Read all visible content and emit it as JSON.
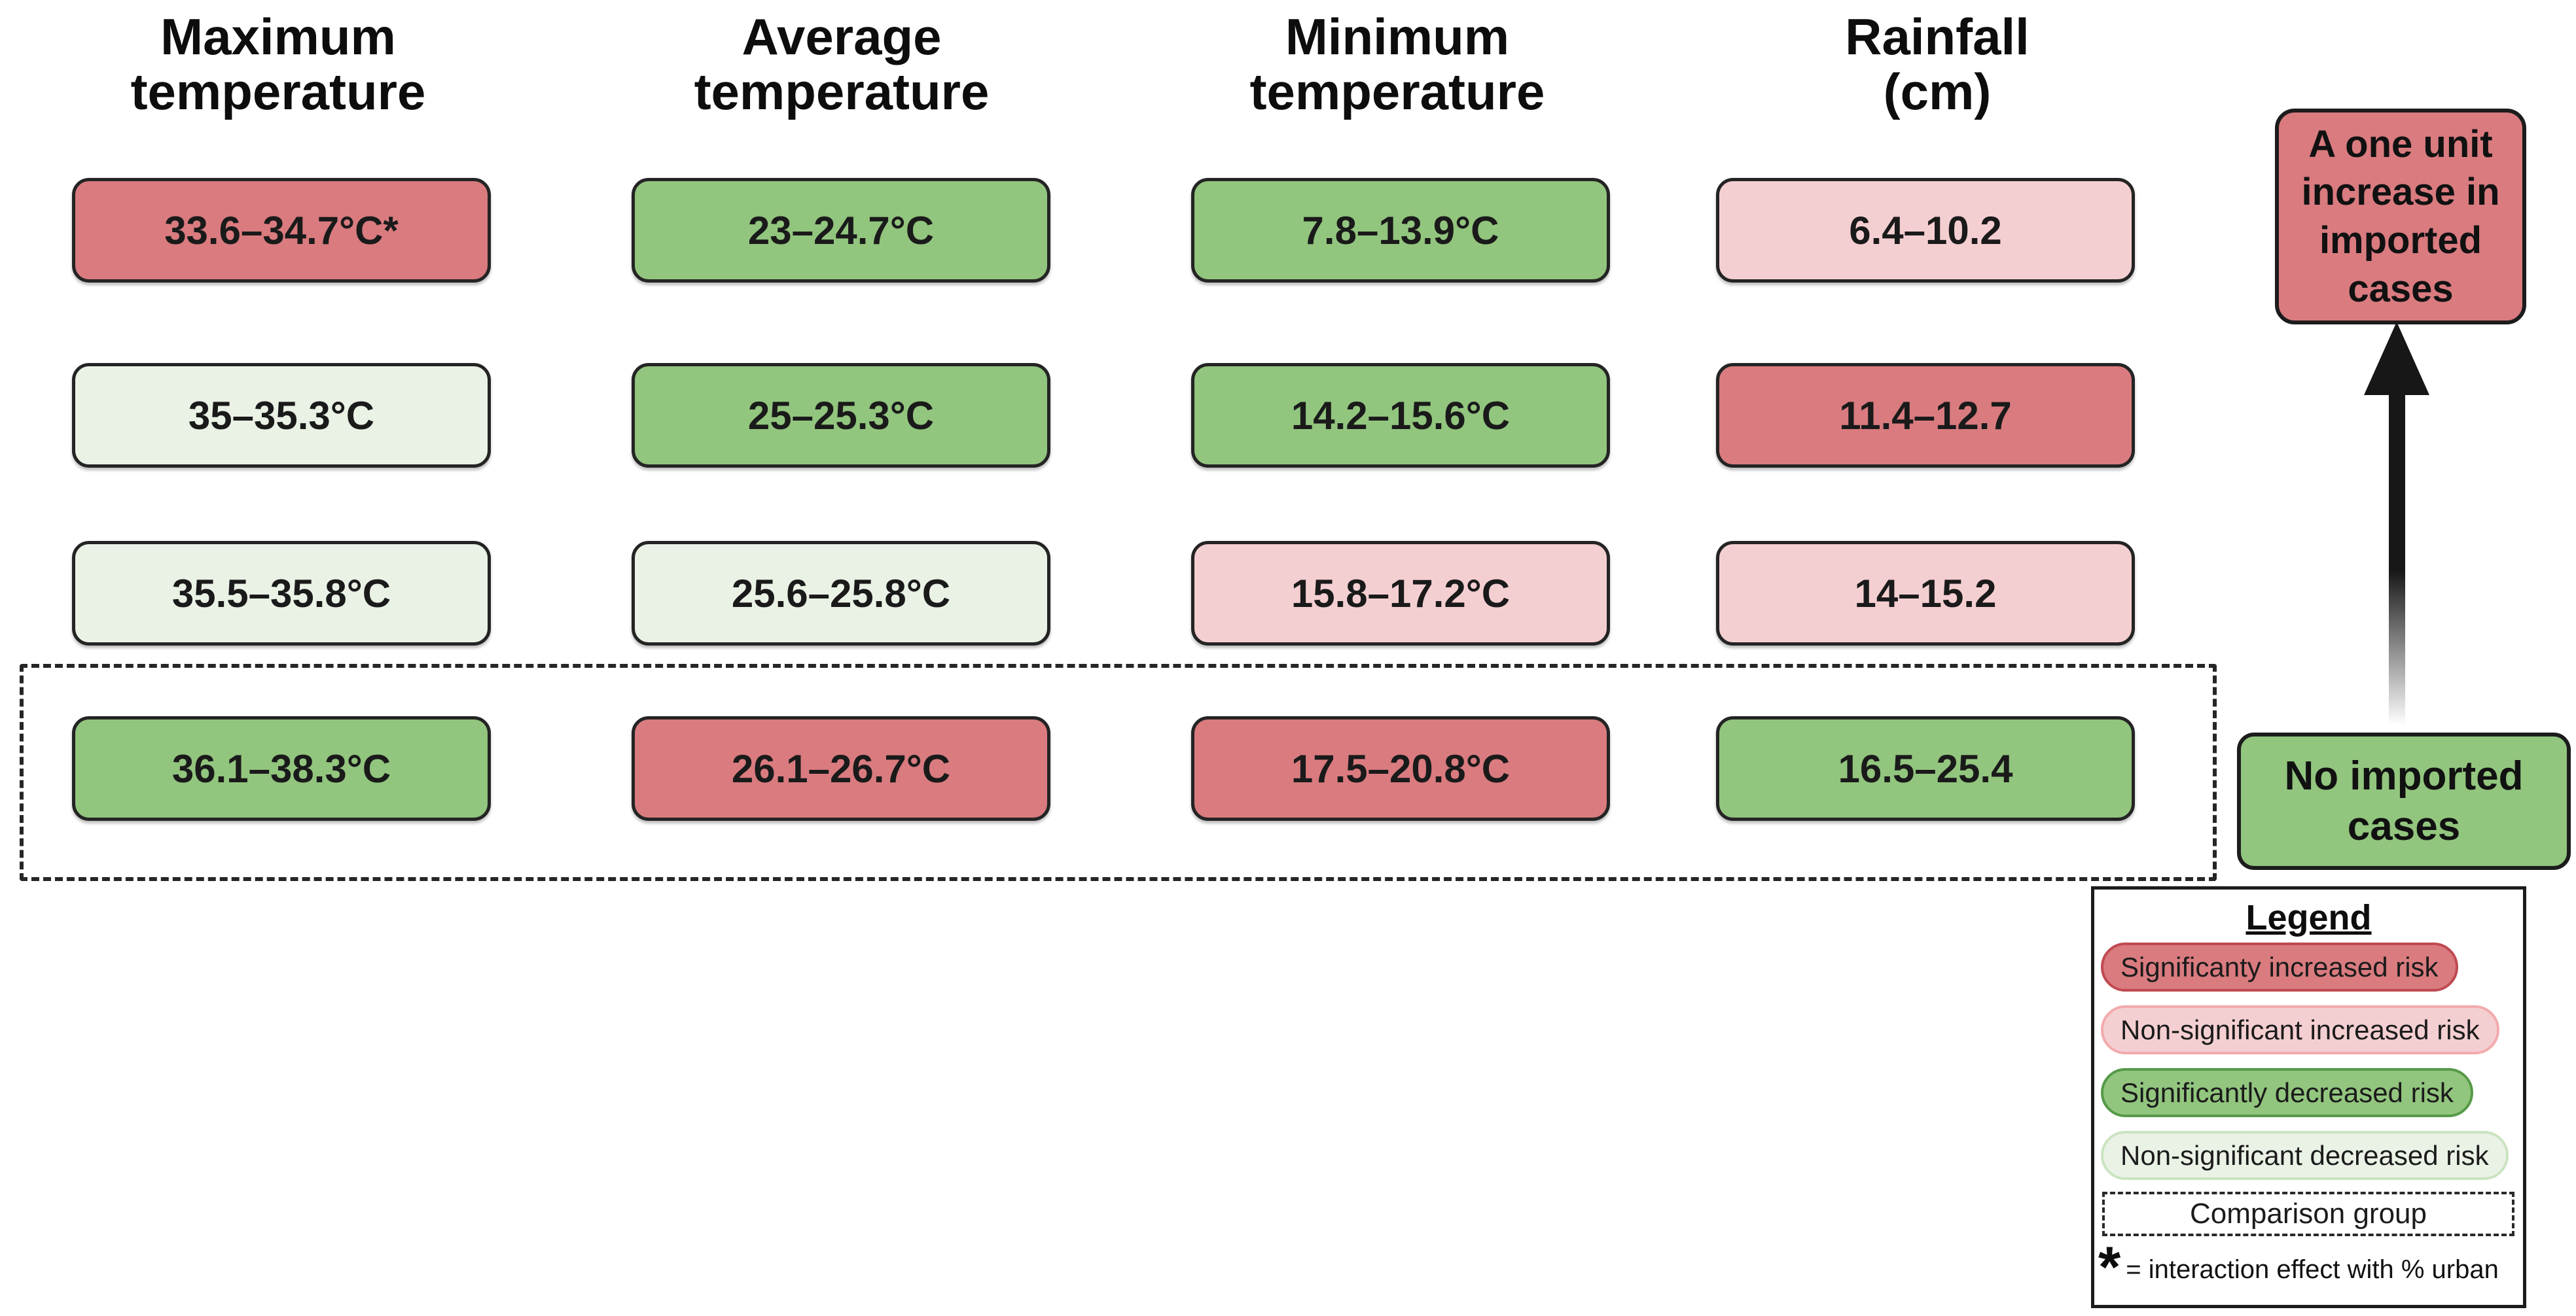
{
  "colors": {
    "sig_increased": "#D97B7F",
    "ns_increased": "#F4CFD1",
    "sig_decreased": "#92C57E",
    "ns_decreased": "#EAF2E6",
    "sig_increased_border": "#C04A52",
    "ns_increased_border": "#F2ABAE",
    "sig_decreased_border": "#569A48",
    "ns_decreased_border": "#CBE4C0"
  },
  "columns": [
    {
      "header": "Maximum\ntemperature",
      "cells": [
        {
          "label": "33.6–34.7°C*",
          "risk": "sig-increased"
        },
        {
          "label": "35–35.3°C",
          "risk": "ns-decreased"
        },
        {
          "label": "35.5–35.8°C",
          "risk": "ns-decreased"
        },
        {
          "label": "36.1–38.3°C",
          "risk": "sig-decreased"
        }
      ]
    },
    {
      "header": "Average\ntemperature",
      "cells": [
        {
          "label": "23–24.7°C",
          "risk": "sig-decreased"
        },
        {
          "label": "25–25.3°C",
          "risk": "sig-decreased"
        },
        {
          "label": "25.6–25.8°C",
          "risk": "ns-decreased"
        },
        {
          "label": "26.1–26.7°C",
          "risk": "sig-increased"
        }
      ]
    },
    {
      "header": "Minimum\ntemperature",
      "cells": [
        {
          "label": "7.8–13.9°C",
          "risk": "sig-decreased"
        },
        {
          "label": "14.2–15.6°C",
          "risk": "sig-decreased"
        },
        {
          "label": "15.8–17.2°C",
          "risk": "ns-increased"
        },
        {
          "label": "17.5–20.8°C",
          "risk": "sig-increased"
        }
      ]
    },
    {
      "header": "Rainfall\n(cm)",
      "cells": [
        {
          "label": "6.4–10.2",
          "risk": "ns-increased"
        },
        {
          "label": "11.4–12.7",
          "risk": "sig-increased"
        },
        {
          "label": "14–15.2",
          "risk": "ns-increased"
        },
        {
          "label": "16.5–25.4",
          "risk": "sig-decreased"
        }
      ]
    }
  ],
  "annotations": {
    "increase_box": "A one unit\nincrease in\nimported\ncases",
    "baseline_box": "No imported\ncases"
  },
  "legend": {
    "title": "Legend",
    "items": [
      {
        "label": "Significanty increased risk",
        "risk": "sig-increased"
      },
      {
        "label": "Non-significant increased risk",
        "risk": "ns-increased"
      },
      {
        "label": "Significantly decreased risk",
        "risk": "sig-decreased"
      },
      {
        "label": "Non-significant decreased risk",
        "risk": "ns-decreased"
      }
    ],
    "comparison_label": "Comparison group",
    "asterisk_symbol": "*",
    "asterisk_note": "= interaction effect with % urban"
  }
}
